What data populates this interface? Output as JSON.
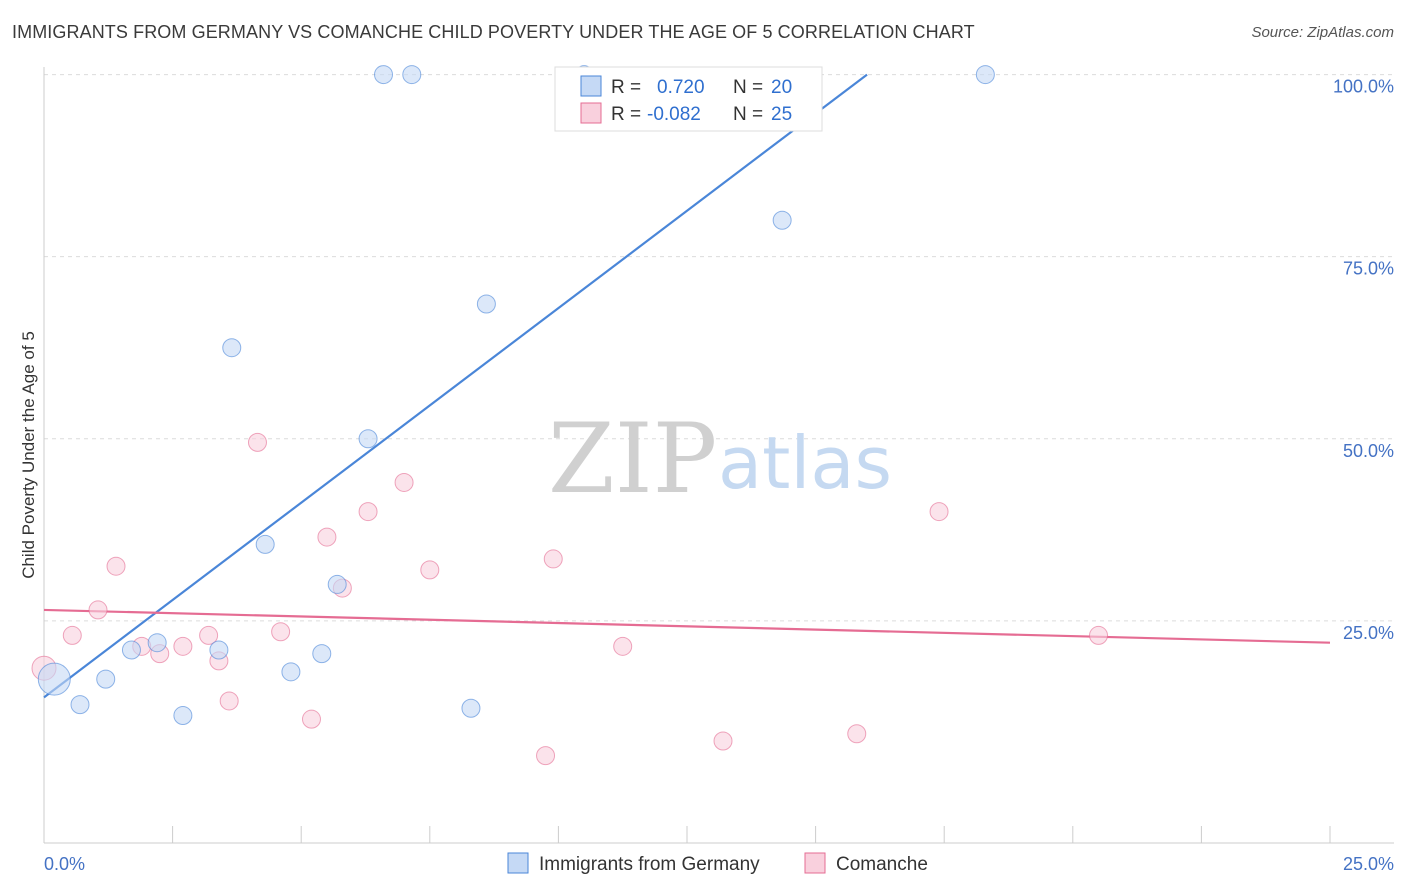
{
  "header": {
    "title": "IMMIGRANTS FROM GERMANY VS COMANCHE CHILD POVERTY UNDER THE AGE OF 5 CORRELATION CHART",
    "source": "Source: ZipAtlas.com"
  },
  "watermark": {
    "zip": "ZIP",
    "atlas": "atlas"
  },
  "legend": {
    "rows": [
      {
        "r_label": "R =",
        "r_value": "0.720",
        "n_label": "N =",
        "n_value": "20",
        "color": "#a9c7f0"
      },
      {
        "r_label": "R =",
        "r_value": "-0.082",
        "n_label": "N =",
        "n_value": "25",
        "color": "#f5b8cb"
      }
    ]
  },
  "bottom_legend": [
    {
      "label": "Immigrants from Germany",
      "color": "#a9c7f0"
    },
    {
      "label": "Comanche",
      "color": "#f5b8cb"
    }
  ],
  "chart_data": {
    "type": "scatter",
    "title": "IMMIGRANTS FROM GERMANY VS COMANCHE CHILD POVERTY UNDER THE AGE OF 5 CORRELATION CHART",
    "xlabel": "",
    "ylabel": "Child Poverty Under the Age of 5",
    "xlim": [
      0,
      25
    ],
    "ylim": [
      0,
      105
    ],
    "x_tick_labels": [
      "0.0%",
      "25.0%"
    ],
    "y_ticks": [
      25,
      50,
      75,
      100
    ],
    "y_tick_labels": [
      "25.0%",
      "50.0%",
      "75.0%",
      "100.0%"
    ],
    "grid": true,
    "colors": {
      "germany": "#4a86d8",
      "comanche": "#e56c93",
      "germany_fill": "#c5d9f5",
      "comanche_fill": "#f9d0dd"
    },
    "series": [
      {
        "name": "Immigrants from Germany",
        "points": [
          [
            0.2,
            17.0,
            16
          ],
          [
            0.7,
            13.5,
            9
          ],
          [
            1.2,
            17.0,
            9
          ],
          [
            1.7,
            21.0,
            9
          ],
          [
            2.2,
            22.0,
            9
          ],
          [
            2.7,
            12.0,
            9
          ],
          [
            3.4,
            21.0,
            9
          ],
          [
            3.65,
            62.5,
            9
          ],
          [
            4.3,
            35.5,
            9
          ],
          [
            4.8,
            18.0,
            9
          ],
          [
            5.4,
            20.5,
            9
          ],
          [
            5.7,
            30.0,
            9
          ],
          [
            6.3,
            50.0,
            9
          ],
          [
            6.6,
            100.0,
            9
          ],
          [
            7.15,
            100.0,
            9
          ],
          [
            8.3,
            13.0,
            9
          ],
          [
            8.6,
            68.5,
            9
          ],
          [
            10.5,
            100.0,
            9
          ],
          [
            14.35,
            80.0,
            9
          ],
          [
            18.3,
            100.0,
            9
          ]
        ],
        "trendline": [
          [
            0,
            14.5
          ],
          [
            16,
            100.0
          ]
        ]
      },
      {
        "name": "Comanche",
        "points": [
          [
            0.0,
            18.5,
            12
          ],
          [
            0.55,
            23.0,
            9
          ],
          [
            1.05,
            26.5,
            9
          ],
          [
            1.4,
            32.5,
            9
          ],
          [
            1.9,
            21.5,
            9
          ],
          [
            2.25,
            20.5,
            9
          ],
          [
            2.7,
            21.5,
            9
          ],
          [
            3.2,
            23.0,
            9
          ],
          [
            3.4,
            19.5,
            9
          ],
          [
            3.6,
            14.0,
            9
          ],
          [
            4.15,
            49.5,
            9
          ],
          [
            4.6,
            23.5,
            9
          ],
          [
            5.2,
            11.5,
            9
          ],
          [
            5.5,
            36.5,
            9
          ],
          [
            5.8,
            29.5,
            9
          ],
          [
            6.3,
            40.0,
            9
          ],
          [
            7.0,
            44.0,
            9
          ],
          [
            7.5,
            32.0,
            9
          ],
          [
            9.75,
            6.5,
            9
          ],
          [
            9.9,
            33.5,
            9
          ],
          [
            11.25,
            21.5,
            9
          ],
          [
            13.2,
            8.5,
            9
          ],
          [
            15.8,
            9.5,
            9
          ],
          [
            17.4,
            40.0,
            9
          ],
          [
            20.5,
            23.0,
            9
          ]
        ],
        "trendline": [
          [
            0,
            26.5
          ],
          [
            25,
            22.0
          ]
        ]
      }
    ]
  }
}
